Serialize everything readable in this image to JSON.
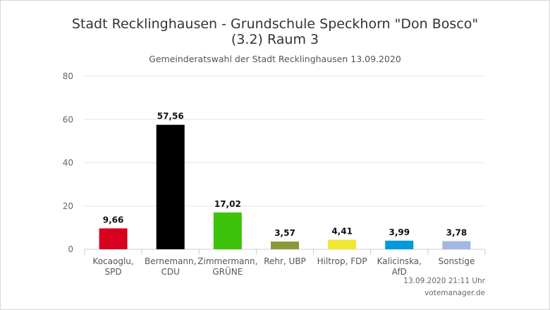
{
  "title_line1": "Stadt Recklinghausen - Grundschule Speckhorn \"Don Bosco\"",
  "title_line2": "(3.2) Raum 3",
  "subtitle": "Gemeinderatswahl der Stadt Recklinghausen 13.09.2020",
  "footer": {
    "timestamp": "13.09.2020 21:11 Uhr",
    "credit": "votemanager.de"
  },
  "chart_data": {
    "type": "bar",
    "title": "Stadt Recklinghausen - Grundschule Speckhorn \"Don Bosco\" (3.2) Raum 3",
    "subtitle": "Gemeinderatswahl der Stadt Recklinghausen 13.09.2020",
    "categories": [
      [
        "Kocaoglu,",
        "SPD"
      ],
      [
        "Bernemann,",
        "CDU"
      ],
      [
        "Zimmermann,",
        "GRÜNE"
      ],
      [
        "Rehr, UBP"
      ],
      [
        "Hiltrop, FDP"
      ],
      [
        "Kalicinska,",
        "AfD"
      ],
      [
        "Sonstige"
      ]
    ],
    "values": [
      9.66,
      57.56,
      17.02,
      3.57,
      4.41,
      3.99,
      3.78
    ],
    "value_labels": [
      "9,66",
      "57,56",
      "17,02",
      "3,57",
      "4,41",
      "3,99",
      "3,78"
    ],
    "colors": [
      "#d7001e",
      "#000000",
      "#3cc40b",
      "#8a9a3a",
      "#f2e632",
      "#0099dd",
      "#a3b8e0"
    ],
    "ylim": [
      0,
      80
    ],
    "yticks": [
      0,
      20,
      40,
      60,
      80
    ],
    "grid": true,
    "legend": "none"
  }
}
